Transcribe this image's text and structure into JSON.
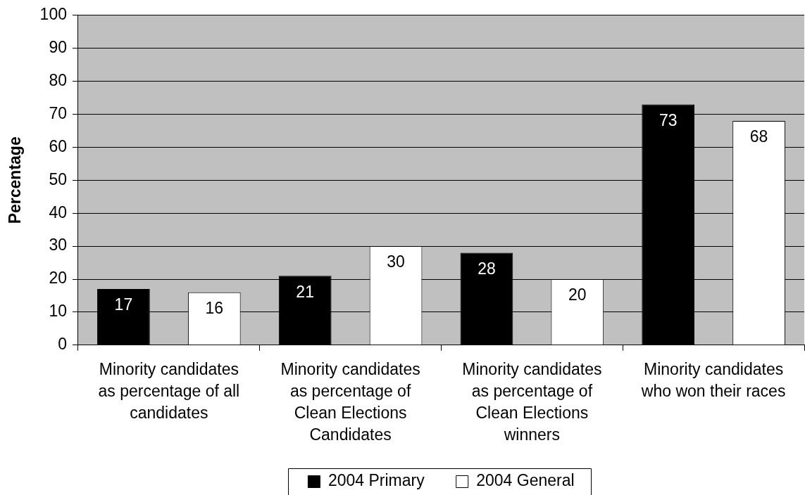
{
  "chart_data": {
    "type": "bar",
    "ylabel": "Percentage",
    "categories": [
      "Minority candidates as percentage of all candidates",
      "Minority candidates as percentage of Clean Elections Candidates",
      "Minority candidates as percentage of Clean Elections winners",
      "Minority candidates who won their races"
    ],
    "series": [
      {
        "name": "2004 Primary",
        "color": "#000000",
        "values": [
          17,
          21,
          28,
          73
        ]
      },
      {
        "name": "2004 General",
        "color": "#ffffff",
        "values": [
          16,
          30,
          20,
          68
        ]
      }
    ],
    "ylim": [
      0,
      100
    ],
    "yticks": [
      0,
      10,
      20,
      30,
      40,
      50,
      60,
      70,
      80,
      90,
      100
    ],
    "grid": "y",
    "legend": "bottom",
    "data_labels": true
  }
}
